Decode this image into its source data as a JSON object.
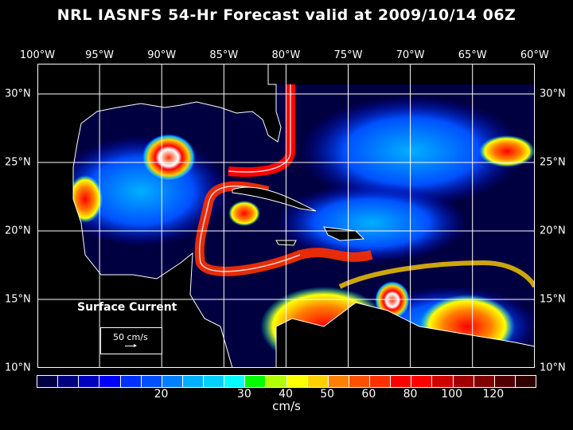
{
  "title": "NRL IASNFS  54-Hr Forecast valid at 2009/10/14 06Z",
  "longitudes": [
    "100°W",
    "95°W",
    "90°W",
    "85°W",
    "80°W",
    "75°W",
    "70°W",
    "65°W",
    "60°W"
  ],
  "latitudes": [
    "30°N",
    "25°N",
    "20°N",
    "15°N",
    "10°N"
  ],
  "legend": {
    "title": "Surface Current",
    "reference_vector": "50 cm/s"
  },
  "colorbar": {
    "units": "cm/s",
    "colors": [
      "#000040",
      "#000080",
      "#0000c0",
      "#0000ff",
      "#0030ff",
      "#0050ff",
      "#0080ff",
      "#00b0ff",
      "#00d0ff",
      "#00ffff",
      "#00ff00",
      "#b0ff00",
      "#ffff00",
      "#ffd000",
      "#ff8000",
      "#ff5000",
      "#ff3000",
      "#ff0000",
      "#ff0000",
      "#d00000",
      "#a00000",
      "#800000",
      "#500000",
      "#300000"
    ],
    "labels": [
      {
        "text": "20",
        "boundary": 6
      },
      {
        "text": "30",
        "boundary": 10
      },
      {
        "text": "40",
        "boundary": 12
      },
      {
        "text": "50",
        "boundary": 14
      },
      {
        "text": "60",
        "boundary": 16
      },
      {
        "text": "80",
        "boundary": 18
      },
      {
        "text": "100",
        "boundary": 20
      },
      {
        "text": "120",
        "boundary": 22
      }
    ]
  }
}
